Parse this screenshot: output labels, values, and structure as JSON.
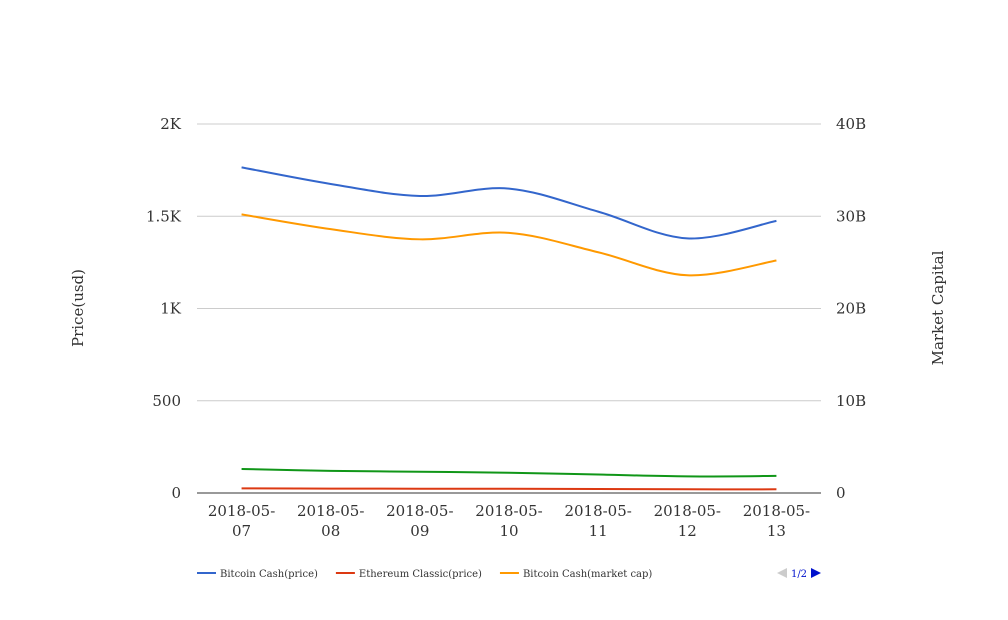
{
  "chart_data": {
    "type": "line",
    "categories": [
      "2018-05-07",
      "2018-05-08",
      "2018-05-09",
      "2018-05-10",
      "2018-05-11",
      "2018-05-12",
      "2018-05-13"
    ],
    "category_labels": [
      [
        "2018-05-",
        "07"
      ],
      [
        "2018-05-",
        "08"
      ],
      [
        "2018-05-",
        "09"
      ],
      [
        "2018-05-",
        "10"
      ],
      [
        "2018-05-",
        "11"
      ],
      [
        "2018-05-",
        "12"
      ],
      [
        "2018-05-",
        "13"
      ]
    ],
    "y_left": {
      "label": "Price(usd)",
      "ticks": [
        0,
        500,
        1000,
        1500,
        2000
      ],
      "tick_labels": [
        "0",
        "500",
        "1K",
        "1.5K",
        "2K"
      ],
      "range": [
        0,
        2000
      ]
    },
    "y_right": {
      "label": "Market Capital",
      "ticks": [
        0,
        10000000000,
        20000000000,
        30000000000,
        40000000000
      ],
      "tick_labels": [
        "0",
        "10B",
        "20B",
        "30B",
        "40B"
      ],
      "range": [
        0,
        40000000000
      ]
    },
    "grid": true,
    "legend_position": "bottom",
    "series": [
      {
        "name": "Bitcoin Cash(price)",
        "axis": "left",
        "color": "#3366cc",
        "values": [
          1765,
          1675,
          1610,
          1650,
          1525,
          1380,
          1475
        ]
      },
      {
        "name": "Ethereum Classic(price)",
        "axis": "left",
        "color": "#dc3912",
        "values": [
          25,
          24,
          23,
          23,
          22,
          20,
          20
        ]
      },
      {
        "name": "Bitcoin Cash(market cap)",
        "axis": "right",
        "color": "#ff9900",
        "values": [
          30200000000,
          28600000000,
          27500000000,
          28200000000,
          26100000000,
          23600000000,
          25200000000
        ]
      },
      {
        "name": "",
        "axis": "right",
        "color": "#109618",
        "values": [
          2600000000,
          2400000000,
          2300000000,
          2200000000,
          2000000000,
          1800000000,
          1850000000
        ]
      }
    ]
  },
  "legend": {
    "page_label": "1/2"
  }
}
